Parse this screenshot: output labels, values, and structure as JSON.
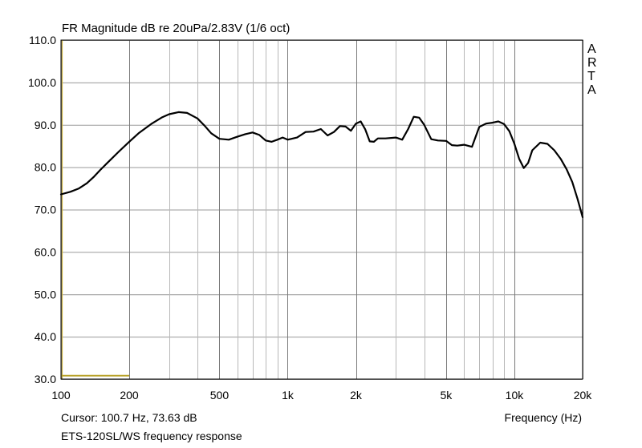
{
  "chart_data": {
    "type": "line",
    "title": "FR Magnitude dB re 20uPa/2.83V (1/6 oct)",
    "xlabel": "Frequency (Hz)",
    "ylabel": "",
    "x_scale": "log",
    "xlim": [
      100,
      20000
    ],
    "ylim": [
      30,
      110
    ],
    "grid": true,
    "y_ticks": [
      "110.0",
      "100.0",
      "90.0",
      "80.0",
      "70.0",
      "60.0",
      "50.0",
      "40.0",
      "30.0"
    ],
    "y_tick_values": [
      110,
      100,
      90,
      80,
      70,
      60,
      50,
      40,
      30
    ],
    "x_ticks": [
      "100",
      "200",
      "500",
      "1k",
      "2k",
      "5k",
      "10k",
      "20k"
    ],
    "x_tick_values": [
      100,
      200,
      500,
      1000,
      2000,
      5000,
      10000,
      20000
    ],
    "x_minor_grid": [
      300,
      400,
      600,
      700,
      800,
      900,
      3000,
      4000,
      6000,
      7000,
      8000,
      9000
    ],
    "series": [
      {
        "color": "#000000",
        "x": [
          100,
          110,
          120,
          130,
          140,
          150,
          160,
          180,
          200,
          220,
          250,
          280,
          300,
          330,
          360,
          400,
          430,
          460,
          500,
          550,
          600,
          650,
          700,
          750,
          800,
          850,
          900,
          950,
          1000,
          1100,
          1200,
          1300,
          1400,
          1500,
          1600,
          1700,
          1800,
          1900,
          2000,
          2100,
          2200,
          2300,
          2400,
          2500,
          2700,
          3000,
          3200,
          3400,
          3600,
          3800,
          4000,
          4300,
          4600,
          5000,
          5300,
          5600,
          6000,
          6500,
          7000,
          7500,
          8000,
          8500,
          9000,
          9500,
          10000,
          10500,
          11000,
          11500,
          12000,
          13000,
          14000,
          15000,
          16000,
          17000,
          18000,
          19000,
          20000
        ],
        "y": [
          73.6,
          74.2,
          75.0,
          76.2,
          77.8,
          79.5,
          81.0,
          83.7,
          86.0,
          88.0,
          90.2,
          91.8,
          92.5,
          93.0,
          92.8,
          91.5,
          89.8,
          88.0,
          86.7,
          86.5,
          87.2,
          87.8,
          88.2,
          87.6,
          86.3,
          86.0,
          86.5,
          87.0,
          86.5,
          87.0,
          88.3,
          88.4,
          89.0,
          87.5,
          88.3,
          89.7,
          89.6,
          88.6,
          90.3,
          90.8,
          88.9,
          86.1,
          86.0,
          86.8,
          86.8,
          87.0,
          86.5,
          89.0,
          91.9,
          91.7,
          90.0,
          86.6,
          86.3,
          86.2,
          85.2,
          85.1,
          85.3,
          84.8,
          89.5,
          90.3,
          90.5,
          90.8,
          90.2,
          88.5,
          85.5,
          82.0,
          79.8,
          81.0,
          84.0,
          85.8,
          85.5,
          84.0,
          82.0,
          79.5,
          76.5,
          72.5,
          68.2
        ]
      }
    ],
    "cursor_marker": {
      "x_from": 100,
      "x_to": 200,
      "y": 30.8,
      "color": "#b8a22a"
    },
    "cursor_line_color": "#c8b040"
  },
  "brand_letters": [
    "A",
    "R",
    "T",
    "A"
  ],
  "cursor_readout": "Cursor: 100.7 Hz, 73.63 dB",
  "caption": "ETS-120SL/WS frequency response",
  "colors": {
    "grid": "#9a9a9a",
    "frame": "#000000",
    "curve": "#000000"
  }
}
